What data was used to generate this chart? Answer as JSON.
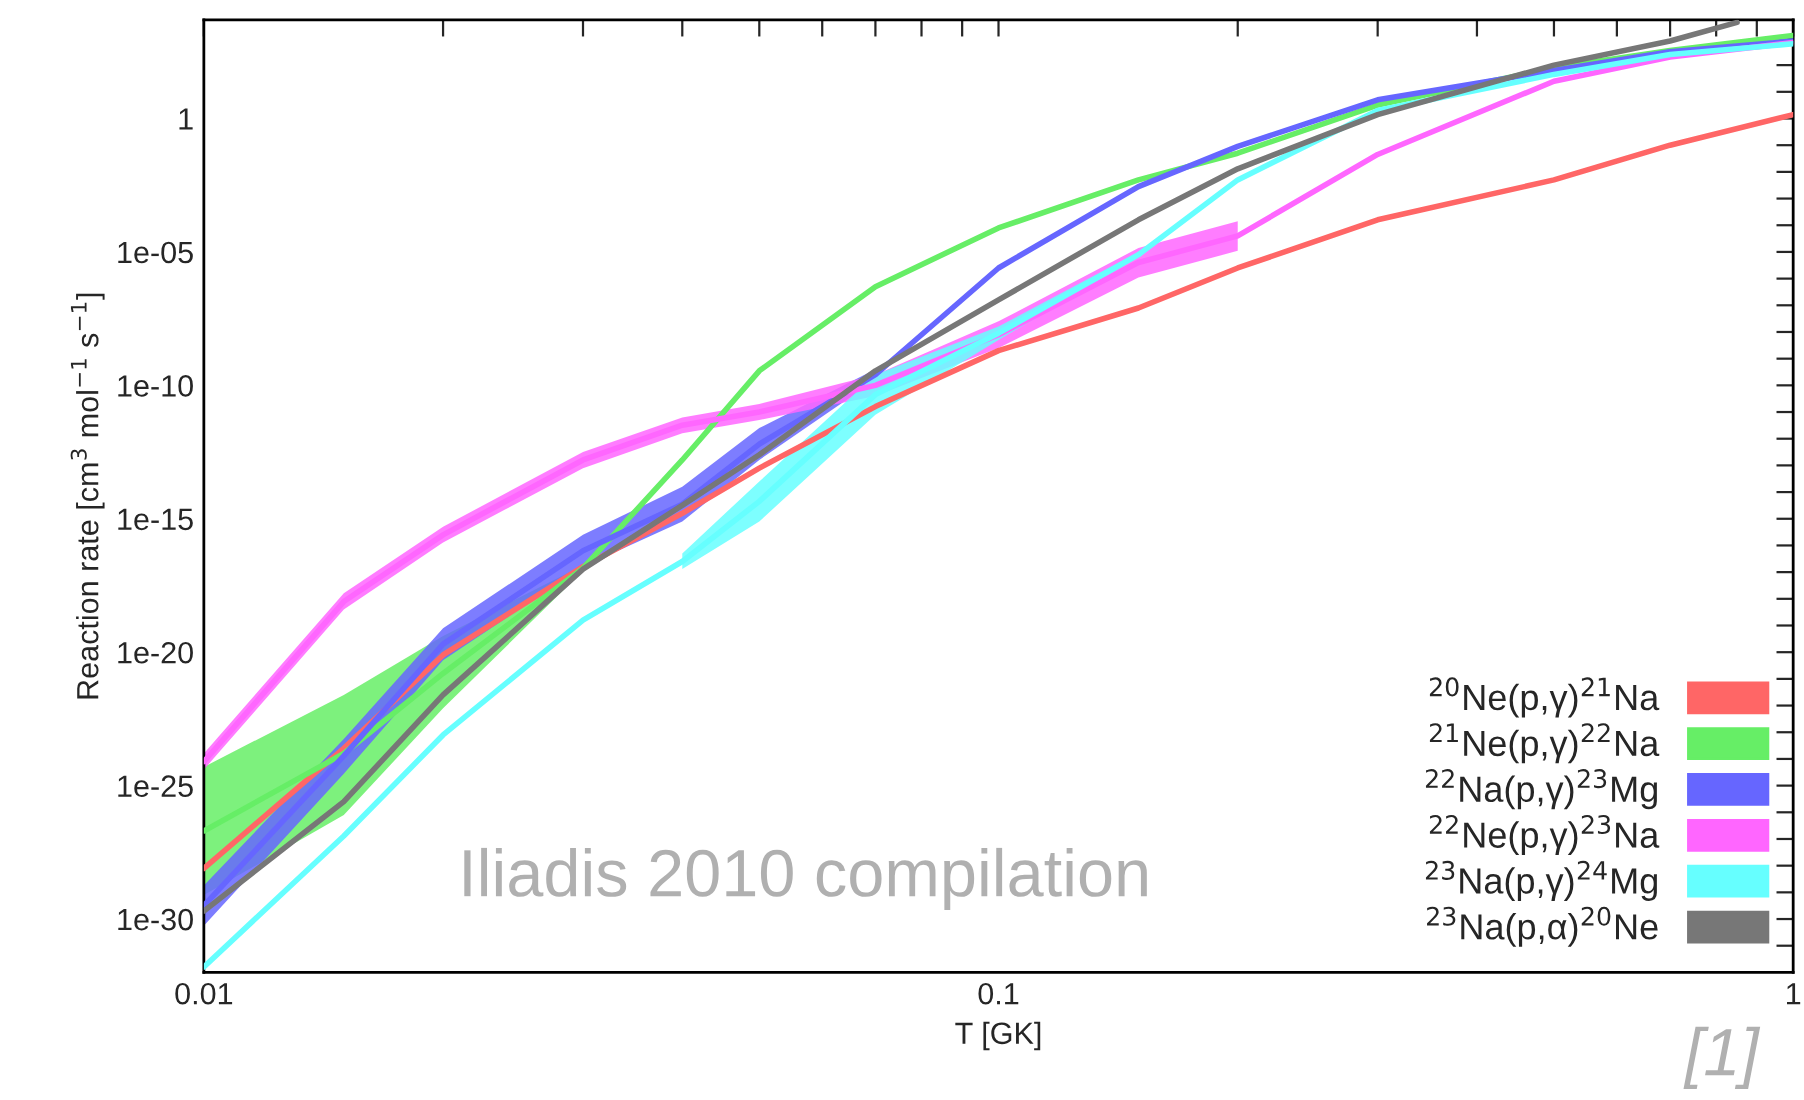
{
  "chart_data": {
    "type": "line",
    "xlabel": "T [GK]",
    "ylabel": "Reaction rate [cm$^{3}$ mol$^{−1}$ s$^{−1}$]",
    "annotations": [
      "Iliadis 2010 compilation",
      "[1]"
    ],
    "log": "xy",
    "legend": "bottom right",
    "xlim": [
      0.01,
      1
    ],
    "ylim": [
      1e-32,
      5000
    ],
    "xticks": [
      0.01,
      {
        "value": 0.02,
        "label": null
      },
      {
        "value": 0.03,
        "label": null
      },
      {
        "value": 0.04,
        "label": null
      },
      {
        "value": 0.05,
        "label": null
      },
      {
        "value": 0.06,
        "label": null
      },
      {
        "value": 0.07,
        "label": null
      },
      {
        "value": 0.08,
        "label": null
      },
      {
        "value": 0.09,
        "label": null
      },
      0.1,
      {
        "value": 0.2,
        "label": null
      },
      {
        "value": 0.3,
        "label": null
      },
      {
        "value": 0.4,
        "label": null
      },
      {
        "value": 0.5,
        "label": null
      },
      {
        "value": 0.6,
        "label": null
      },
      {
        "value": 0.7,
        "label": null
      },
      {
        "value": 0.8,
        "label": null
      },
      {
        "value": 0.9,
        "label": null
      },
      1
    ],
    "yticks": [
      {
        "value": 1e-31,
        "label": null
      },
      {
        "value": 1e-30,
        "label": "1e-30"
      },
      {
        "value": 1e-29,
        "label": null
      },
      {
        "value": 1e-28,
        "label": null
      },
      {
        "value": 1e-27,
        "label": null
      },
      {
        "value": 1e-26,
        "label": null
      },
      {
        "value": 1e-25,
        "label": "1e-25"
      },
      {
        "value": 1e-24,
        "label": null
      },
      {
        "value": 1e-23,
        "label": null
      },
      {
        "value": 1e-22,
        "label": null
      },
      {
        "value": 1e-21,
        "label": null
      },
      {
        "value": 1e-20,
        "label": "1e-20"
      },
      {
        "value": 1e-19,
        "label": null
      },
      {
        "value": 1e-18,
        "label": null
      },
      {
        "value": 1e-17,
        "label": null
      },
      {
        "value": 1e-16,
        "label": null
      },
      {
        "value": 1e-15,
        "label": "1e-15"
      },
      {
        "value": 1e-14,
        "label": null
      },
      {
        "value": 1e-13,
        "label": null
      },
      {
        "value": 1e-12,
        "label": null
      },
      {
        "value": 1e-11,
        "label": null
      },
      {
        "value": 1e-10,
        "label": "1e-10"
      },
      {
        "value": 1e-09,
        "label": null
      },
      {
        "value": 1e-08,
        "label": null
      },
      {
        "value": 1e-07,
        "label": null
      },
      {
        "value": 1e-06,
        "label": null
      },
      {
        "value": 1e-05,
        "label": "1e-05"
      },
      {
        "value": 0.0001,
        "label": null
      },
      {
        "value": 0.001,
        "label": null
      },
      {
        "value": 0.01,
        "label": null
      },
      {
        "value": 0.1,
        "label": null
      },
      1,
      {
        "value": 10,
        "label": null
      },
      {
        "value": 100,
        "label": null
      },
      {
        "value": 1000,
        "label": null
      }
    ],
    "x": [
      0.01,
      0.015,
      0.02,
      0.03,
      0.04,
      0.05,
      0.07,
      0.1,
      0.15,
      0.2,
      0.3,
      0.5,
      0.7,
      1
    ],
    "series": [
      {
        "name": "$^{20}$Ne(p,γ)$^{21}$Na",
        "color": "#ff6666",
        "values": [
          7.9e-29,
          2.5e-24,
          7.9e-21,
          1.6e-17,
          1.6e-15,
          7.9e-14,
          1.6e-11,
          2e-09,
          7.9e-08,
          2.5e-06,
          0.00016,
          0.005,
          0.1,
          1.4
        ]
      },
      {
        "name": "$^{21}$Ne(p,γ)$^{22}$Na",
        "color": "#66ee66",
        "values": [
          2e-27,
          1.6e-24,
          1.6e-21,
          1.4e-17,
          1.6e-13,
          3.5e-10,
          5e-07,
          7.9e-05,
          0.005,
          0.05,
          3.2,
          79,
          350,
          1300
        ],
        "lower": [
          7.9e-30,
          7.9e-27,
          7.9e-23,
          1.1e-17,
          null,
          null,
          null,
          null,
          null,
          null,
          null,
          null,
          null,
          null
        ],
        "upper": [
          5e-25,
          2.5e-22,
          4e-20,
          1.8e-17,
          null,
          null,
          null,
          null,
          null,
          null,
          null,
          null,
          null,
          null
        ]
      },
      {
        "name": "$^{22}$Na(p,γ)$^{23}$Mg",
        "color": "#6666ff",
        "values": [
          3.2e-30,
          1.3e-24,
          2e-20,
          6.3e-17,
          3.5e-15,
          6.3e-13,
          2.5e-10,
          2.5e-06,
          0.0028,
          0.09,
          5,
          63,
          320,
          800
        ],
        "lower": [
          5.6e-31,
          2.8e-25,
          5e-21,
          1.6e-17,
          7.9e-16,
          1.6e-13,
          1.6e-10,
          null,
          null,
          null,
          null,
          null,
          null,
          null
        ],
        "upper": [
          1.8e-29,
          5.6e-24,
          7.9e-20,
          2.5e-16,
          1.6e-14,
          2.5e-12,
          4e-10,
          null,
          null,
          null,
          null,
          null,
          null,
          null
        ]
      },
      {
        "name": "$^{22}$Ne(p,γ)$^{23}$Na",
        "color": "#ff66ff",
        "values": [
          7.9e-25,
          7.9e-19,
          2.5e-16,
          1.6e-13,
          3.2e-12,
          1e-11,
          1e-10,
          7.9e-09,
          4e-06,
          4e-05,
          0.045,
          25,
          200,
          700
        ],
        "lower": [
          4e-25,
          4e-19,
          1.3e-16,
          7.9e-14,
          1.6e-12,
          5e-12,
          4e-11,
          2.5e-09,
          1.1e-06,
          1.1e-05,
          null,
          null,
          null,
          null
        ],
        "upper": [
          1.6e-24,
          1.6e-18,
          5e-16,
          3.2e-13,
          6.3e-12,
          2e-11,
          2.5e-10,
          2.5e-08,
          1.4e-05,
          0.00014,
          null,
          null,
          null,
          null
        ]
      },
      {
        "name": "$^{23}$Na(p,γ)$^{24}$Mg",
        "color": "#66ffff",
        "values": [
          1.6e-32,
          1.3e-27,
          7.9e-24,
          1.6e-19,
          2.5e-17,
          4.5e-15,
          4.5e-11,
          9e-09,
          7.9e-06,
          0.005,
          2,
          45,
          250,
          630
        ],
        "lower": [
          null,
          null,
          null,
          null,
          1.3e-17,
          7.9e-16,
          7.9e-12,
          5e-09,
          6.3e-06,
          null,
          null,
          null,
          null,
          null
        ],
        "upper": [
          null,
          null,
          null,
          null,
          5e-17,
          2.5e-14,
          2.5e-10,
          1.6e-08,
          1e-05,
          null,
          null,
          null,
          null,
          null
        ]
      },
      {
        "name": "$^{23}$Na(p,α)$^{20}$Ne",
        "color": "#777777",
        "x": [
          0.01,
          0.015,
          0.02,
          0.03,
          0.04,
          0.05,
          0.07,
          0.1,
          0.15,
          0.2,
          0.3,
          0.5,
          0.7,
          0.85
        ],
        "values": [
          2e-30,
          2.5e-26,
          2.5e-22,
          1.3e-17,
          3.2e-15,
          2.5e-13,
          3.5e-10,
          1.6e-07,
          0.00016,
          0.013,
          1.4,
          100,
          800,
          4000
        ]
      }
    ]
  }
}
